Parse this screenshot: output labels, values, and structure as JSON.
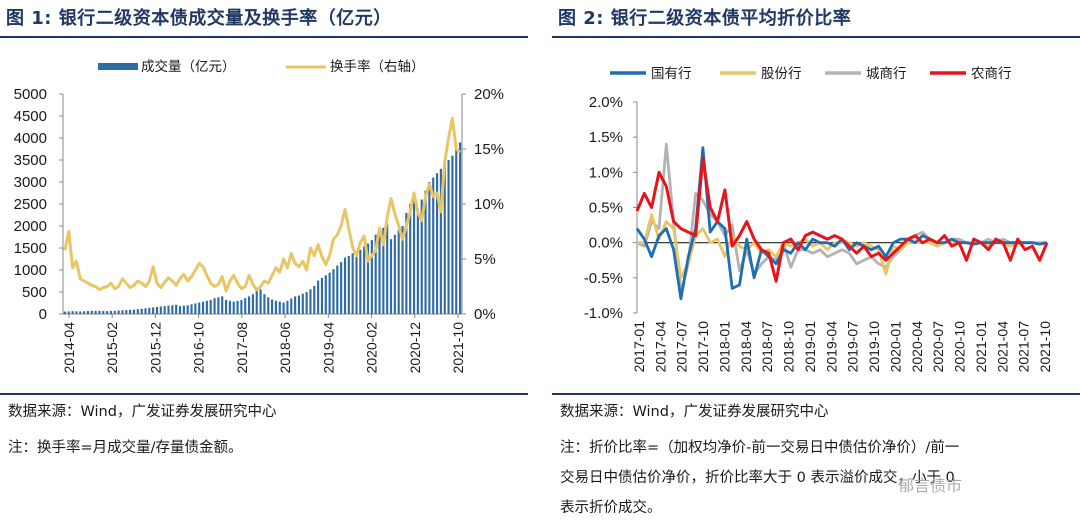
{
  "panels": {
    "left": {
      "title": "图 1:  银行二级资本债成交量及换手率（亿元）",
      "source": "数据来源：Wind，广发证券发展研究中心",
      "note": "注：换手率=月成交量/存量债金额。"
    },
    "right": {
      "title": "图 2:  银行二级资本债平均折价比率",
      "source": "数据来源：Wind，广发证券发展研究中心",
      "note_line1": "注：折价比率=（加权均净价-前一交易日中债估价净价）/前一",
      "note_line2": "交易日中债估价净价，折价比率大于 0 表示溢价成交，小于 0",
      "note_line3": "表示折价成交。"
    }
  },
  "watermark": "郁言债市",
  "colors": {
    "volume": "#2f6ca6",
    "turnover": "#e8c565",
    "guoyou": "#1f6db3",
    "gufen": "#e8c565",
    "chengshang": "#b3b3b3",
    "nongshang": "#e6141b"
  },
  "chart_data": [
    {
      "type": "bar+line",
      "title": "银行二级资本债成交量及换手率（亿元）",
      "x_tick_labels": [
        "2014-04",
        "2015-02",
        "2015-12",
        "2016-10",
        "2017-08",
        "2018-06",
        "2019-04",
        "2020-02",
        "2020-12",
        "2021-10"
      ],
      "x_start": "2014-04",
      "y_left": {
        "min": 0,
        "max": 5000,
        "ticks": [
          "0",
          "500",
          "1000",
          "1500",
          "2000",
          "2500",
          "3000",
          "3500",
          "4000",
          "4500",
          "5000"
        ]
      },
      "y_right": {
        "min": 0,
        "max": 20,
        "ticks": [
          "0%",
          "5%",
          "10%",
          "15%",
          "20%"
        ]
      },
      "series": [
        {
          "name": "成交量（亿元）",
          "axis": "left",
          "kind": "bar",
          "values": [
            55,
            60,
            65,
            60,
            58,
            62,
            70,
            75,
            72,
            70,
            68,
            65,
            70,
            72,
            80,
            85,
            90,
            95,
            100,
            110,
            120,
            130,
            140,
            150,
            160,
            170,
            180,
            190,
            200,
            210,
            180,
            190,
            200,
            220,
            240,
            260,
            280,
            300,
            320,
            360,
            380,
            400,
            320,
            300,
            280,
            300,
            320,
            360,
            400,
            450,
            520,
            560,
            450,
            380,
            330,
            300,
            280,
            260,
            300,
            350,
            400,
            420,
            460,
            500,
            560,
            640,
            760,
            820,
            880,
            940,
            1020,
            1100,
            1180,
            1280,
            1320,
            1380,
            1400,
            1460,
            1540,
            1600,
            1680,
            1800,
            1880,
            1960,
            2040,
            1700,
            1800,
            1900,
            2000,
            2300,
            2500,
            2700,
            2400,
            2600,
            2800,
            3000,
            3100,
            3200,
            3300,
            3400,
            3500,
            3600,
            3800,
            3900
          ]
        },
        {
          "name": "换手率（右轴）",
          "axis": "right",
          "kind": "line",
          "values": [
            5.8,
            7.5,
            4.2,
            4.8,
            3.2,
            3.0,
            2.8,
            2.6,
            2.5,
            2.2,
            2.4,
            2.5,
            2.8,
            2.3,
            2.5,
            3.2,
            2.8,
            2.4,
            2.6,
            3.0,
            2.8,
            2.5,
            3.0,
            4.3,
            2.8,
            2.4,
            2.9,
            3.3,
            3.0,
            2.6,
            3.2,
            3.6,
            3.0,
            3.4,
            4.0,
            4.6,
            4.3,
            3.5,
            2.8,
            2.5,
            2.7,
            3.4,
            2.1,
            3.0,
            3.5,
            2.8,
            2.3,
            2.5,
            3.5,
            2.7,
            2.2,
            2.5,
            3.0,
            2.8,
            3.5,
            4.2,
            3.8,
            5.0,
            4.2,
            5.5,
            4.6,
            4.3,
            4.8,
            4.0,
            6.0,
            5.3,
            6.3,
            5.2,
            4.5,
            5.3,
            6.8,
            7.2,
            8.0,
            9.5,
            7.8,
            6.0,
            5.3,
            6.5,
            7.1,
            4.8,
            5.3,
            5.8,
            7.8,
            6.3,
            8.8,
            10.5,
            9.1,
            8.0,
            6.8,
            8.0,
            9.3,
            11.0,
            9.2,
            8.5,
            10.7,
            11.8,
            10.7,
            11.0,
            9.3,
            13.8,
            16.0,
            17.8,
            15.0,
            14.7
          ]
        }
      ],
      "legend": [
        "成交量（亿元）",
        "换手率（右轴）"
      ]
    },
    {
      "type": "line",
      "title": "银行二级资本债平均折价比率",
      "x_tick_labels": [
        "2017-01",
        "2017-04",
        "2017-07",
        "2017-10",
        "2018-01",
        "2018-04",
        "2018-07",
        "2018-10",
        "2019-01",
        "2019-04",
        "2019-07",
        "2019-10",
        "2020-01",
        "2020-04",
        "2020-07",
        "2020-10",
        "2021-01",
        "2021-04",
        "2021-07",
        "2021-10"
      ],
      "y": {
        "min": -1.0,
        "max": 2.0,
        "ticks": [
          "-1.0%",
          "-0.5%",
          "0.0%",
          "0.5%",
          "1.0%",
          "1.5%",
          "2.0%"
        ]
      },
      "series": [
        {
          "name": "国有行",
          "values": [
            0.2,
            0.05,
            -0.2,
            0.1,
            0.2,
            -0.1,
            -0.8,
            -0.2,
            0.2,
            1.35,
            0.15,
            0.3,
            0.2,
            -0.65,
            -0.6,
            0.05,
            -0.5,
            -0.1,
            -0.2,
            -0.3,
            -0.1,
            -0.15,
            0.0,
            -0.1,
            0.05,
            0.0,
            0.0,
            -0.05,
            0.05,
            -0.1,
            0.0,
            -0.05,
            -0.1,
            -0.05,
            -0.2,
            0.0,
            0.05,
            0.05,
            0.0,
            0.1,
            0.05,
            0.0,
            0.0,
            0.05,
            0.0,
            0.0,
            -0.02,
            0.0,
            0.0,
            0.0,
            0.0,
            0.0,
            0.0,
            0.0,
            0.0,
            -0.02,
            0.0
          ]
        },
        {
          "name": "股份行",
          "values": [
            0.0,
            0.0,
            0.4,
            0.05,
            0.3,
            0.2,
            -0.5,
            -0.3,
            0.1,
            0.2,
            0.0,
            0.05,
            -0.2,
            0.1,
            -0.05,
            -0.1,
            0.0,
            -0.15,
            -0.1,
            -0.2,
            0.0,
            -0.05,
            0.0,
            0.05,
            -0.05,
            0.0,
            -0.1,
            0.0,
            0.0,
            0.0,
            -0.05,
            0.0,
            -0.05,
            -0.1,
            -0.45,
            -0.05,
            -0.1,
            0.0,
            0.0,
            0.0,
            0.0,
            -0.05,
            0.0,
            0.0,
            0.0,
            0.0,
            0.0,
            0.0,
            -0.05,
            0.0,
            0.0,
            -0.05,
            0.0,
            0.0,
            0.0,
            0.0,
            0.0
          ]
        },
        {
          "name": "城商行",
          "values": [
            0.0,
            -0.05,
            0.3,
            0.2,
            1.4,
            0.3,
            -0.7,
            -0.3,
            0.7,
            0.6,
            0.4,
            0.3,
            0.1,
            0.25,
            -0.4,
            -0.1,
            -0.45,
            -0.3,
            -0.2,
            -0.25,
            0.0,
            -0.35,
            -0.1,
            -0.1,
            -0.15,
            -0.1,
            -0.2,
            -0.15,
            -0.1,
            -0.15,
            -0.3,
            -0.25,
            -0.2,
            -0.3,
            -0.35,
            -0.2,
            -0.1,
            0.0,
            0.1,
            0.15,
            0.05,
            -0.05,
            0.0,
            0.05,
            0.05,
            0.0,
            0.0,
            0.0,
            0.05,
            0.0,
            0.05,
            0.0,
            0.0,
            0.0,
            0.0,
            0.0,
            0.0
          ]
        },
        {
          "name": "农商行",
          "values": [
            0.45,
            0.7,
            0.5,
            1.0,
            0.8,
            0.3,
            0.2,
            0.15,
            0.1,
            1.2,
            0.5,
            0.3,
            0.75,
            -0.05,
            0.1,
            0.3,
            0.05,
            -0.1,
            -0.15,
            -0.55,
            0.0,
            0.05,
            -0.1,
            0.1,
            0.15,
            0.1,
            0.05,
            0.1,
            0.05,
            -0.05,
            -0.15,
            -0.05,
            -0.2,
            -0.15,
            -0.25,
            -0.15,
            -0.05,
            0.05,
            0.1,
            0.0,
            0.05,
            0.0,
            0.1,
            -0.05,
            0.0,
            -0.25,
            0.05,
            0.0,
            -0.1,
            0.05,
            0.0,
            -0.25,
            0.05,
            -0.1,
            -0.05,
            -0.25,
            0.0
          ]
        }
      ],
      "legend": [
        "国有行",
        "股份行",
        "城商行",
        "农商行"
      ]
    }
  ]
}
